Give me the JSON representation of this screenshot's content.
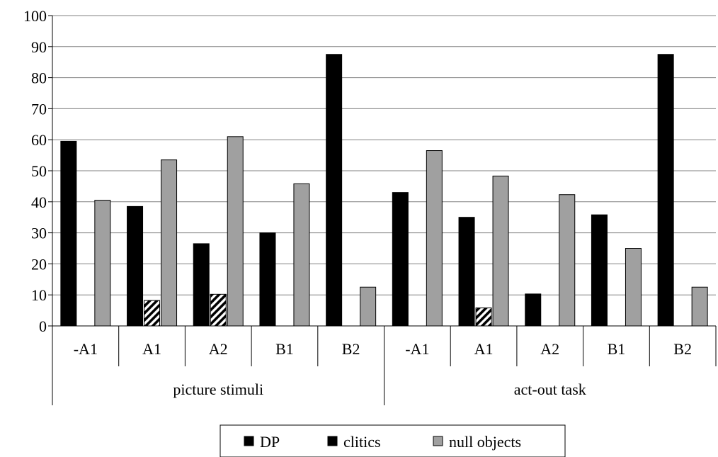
{
  "chart_data": {
    "type": "bar",
    "title": "",
    "xlabel": "",
    "ylabel": "",
    "ylim": [
      0,
      100
    ],
    "yticks": [
      0,
      10,
      20,
      30,
      40,
      50,
      60,
      70,
      80,
      90,
      100
    ],
    "grid": true,
    "legend_position": "bottom-center",
    "groups": [
      {
        "label": "picture stimuli",
        "categories": [
          "-A1",
          "A1",
          "A2",
          "B1",
          "B2"
        ]
      },
      {
        "label": "act-out task",
        "categories": [
          "-A1",
          "A1",
          "A2",
          "B1",
          "B2"
        ]
      }
    ],
    "series": [
      {
        "name": "DP",
        "color": "#000000",
        "pattern": "solid",
        "values": [
          59.5,
          38.5,
          26.5,
          30,
          87.5,
          43,
          35,
          10.3,
          35.8,
          87.5
        ]
      },
      {
        "name": "clitics",
        "color": "#000000",
        "pattern": "hatched",
        "values": [
          0,
          8.2,
          10.2,
          0,
          0,
          0,
          5.8,
          0,
          0,
          0
        ]
      },
      {
        "name": "null objects",
        "color": "#a0a0a0",
        "pattern": "solid",
        "values": [
          40.5,
          53.5,
          61,
          45.8,
          12.5,
          56.5,
          48.3,
          42.3,
          25,
          12.5
        ]
      }
    ]
  }
}
